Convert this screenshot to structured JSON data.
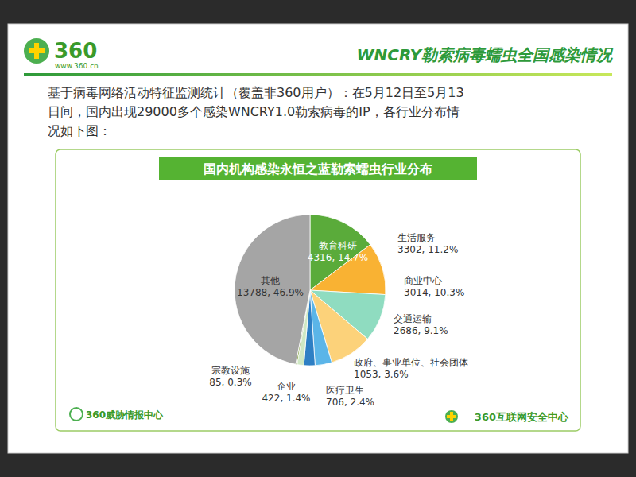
{
  "slide": {
    "logo_text": "360",
    "logo_url": "www.360.cn",
    "heading": "WNCRY勒索病毒蠕虫全国感染情况",
    "description": [
      "基于病毒网络活动特征监测统计（覆盖非360用户）：在5月12日至5月13",
      "日间，国内出现29000多个感染WNCRY1.0勒索病毒的IP，各行业分布情",
      "况如下图："
    ],
    "footer_left": "360威胁情报中心",
    "footer_right": "360互联网安全中心"
  },
  "chart_data": {
    "type": "pie",
    "title": "国内机构感染永恒之蓝勒索蠕虫行业分布",
    "categories": [
      "教育科研",
      "生活服务",
      "商业中心",
      "交通运输",
      "政府、事业单位、社会团体",
      "医疗卫生",
      "企业",
      "宗教设施",
      "其他"
    ],
    "values": [
      4316,
      3302,
      3014,
      2686,
      1053,
      706,
      422,
      85,
      13788
    ],
    "value_labels": [
      "4316, 14.7%",
      "3302, 11.2%",
      "3014, 10.3%",
      "2686, 9.1%",
      "1053, 3.6%",
      "706, 2.4%",
      "422, 1.4%",
      "85, 0.3%",
      "13788, 46.9%"
    ],
    "colors": [
      "#5aab3a",
      "#f9b233",
      "#8fdcc0",
      "#fcd27a",
      "#5bb5e8",
      "#2e7fc4",
      "#cfe8c4",
      "#6b8e23",
      "#a5a5a5"
    ],
    "data_labels": true
  }
}
